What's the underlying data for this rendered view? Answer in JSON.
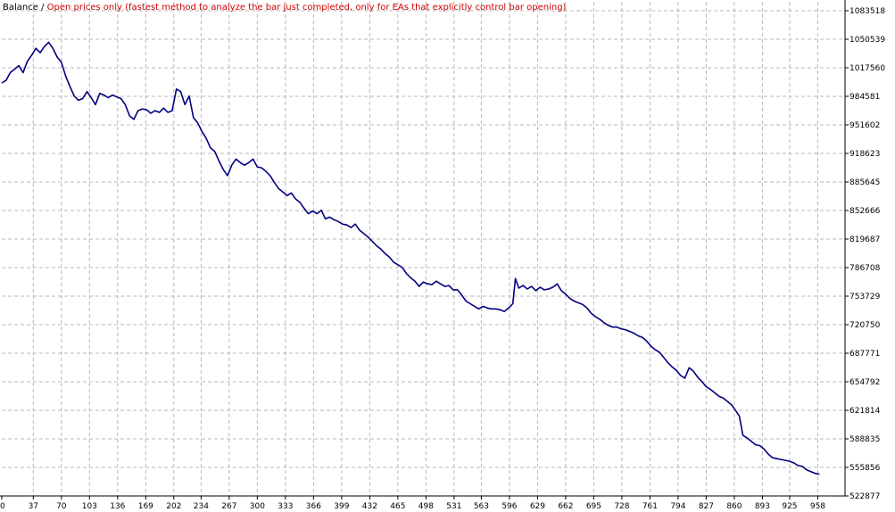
{
  "chart_data": {
    "type": "line",
    "legend": {
      "series_label": "Balance",
      "separator": " / ",
      "mode_label": "Open prices only (fastest method to analyze the bar just completed, only for EAs that explicitly control bar opening)"
    },
    "colors": {
      "line": "#000080",
      "grid": "#b8b8b8",
      "axis": "#000000",
      "mode_text": "#cc0000",
      "label_text": "#000000"
    },
    "x_ticks": [
      0,
      37,
      70,
      103,
      136,
      169,
      202,
      234,
      267,
      300,
      333,
      366,
      399,
      432,
      465,
      498,
      531,
      563,
      596,
      629,
      662,
      695,
      728,
      761,
      794,
      827,
      860,
      893,
      925,
      958
    ],
    "y_ticks": [
      522877,
      555856,
      588835,
      621814,
      654792,
      687771,
      720750,
      753729,
      786708,
      819687,
      852666,
      885645,
      918623,
      951602,
      984581,
      1017560,
      1050539,
      1083518
    ],
    "xlim": [
      0,
      990
    ],
    "ylim": [
      522877,
      1083518
    ],
    "grid": true,
    "series": [
      {
        "points": [
          [
            0,
            1000000
          ],
          [
            5,
            1003000
          ],
          [
            10,
            1012000
          ],
          [
            15,
            1016000
          ],
          [
            20,
            1020000
          ],
          [
            25,
            1012000
          ],
          [
            30,
            1025000
          ],
          [
            35,
            1032000
          ],
          [
            40,
            1040000
          ],
          [
            45,
            1035000
          ],
          [
            50,
            1042000
          ],
          [
            55,
            1047000
          ],
          [
            60,
            1040000
          ],
          [
            65,
            1030000
          ],
          [
            70,
            1024000
          ],
          [
            75,
            1008000
          ],
          [
            80,
            996000
          ],
          [
            85,
            985000
          ],
          [
            90,
            980000
          ],
          [
            95,
            982000
          ],
          [
            100,
            990000
          ],
          [
            105,
            983000
          ],
          [
            110,
            975000
          ],
          [
            115,
            988000
          ],
          [
            120,
            986000
          ],
          [
            125,
            983000
          ],
          [
            130,
            986000
          ],
          [
            135,
            984000
          ],
          [
            140,
            982000
          ],
          [
            145,
            975000
          ],
          [
            150,
            962000
          ],
          [
            155,
            958000
          ],
          [
            160,
            968000
          ],
          [
            165,
            970000
          ],
          [
            170,
            969000
          ],
          [
            175,
            965000
          ],
          [
            180,
            968000
          ],
          [
            185,
            966000
          ],
          [
            190,
            971000
          ],
          [
            195,
            966000
          ],
          [
            200,
            968000
          ],
          [
            205,
            993000
          ],
          [
            210,
            990000
          ],
          [
            215,
            975000
          ],
          [
            220,
            985000
          ],
          [
            225,
            960000
          ],
          [
            230,
            954000
          ],
          [
            235,
            944000
          ],
          [
            240,
            936000
          ],
          [
            245,
            925000
          ],
          [
            250,
            921000
          ],
          [
            255,
            910000
          ],
          [
            260,
            900000
          ],
          [
            265,
            893000
          ],
          [
            270,
            905000
          ],
          [
            275,
            912000
          ],
          [
            280,
            908000
          ],
          [
            285,
            905000
          ],
          [
            290,
            908000
          ],
          [
            295,
            912000
          ],
          [
            300,
            903000
          ],
          [
            305,
            902000
          ],
          [
            310,
            898000
          ],
          [
            315,
            893000
          ],
          [
            320,
            885000
          ],
          [
            325,
            878000
          ],
          [
            330,
            874000
          ],
          [
            335,
            870000
          ],
          [
            340,
            873000
          ],
          [
            345,
            866000
          ],
          [
            350,
            862000
          ],
          [
            355,
            855000
          ],
          [
            360,
            849000
          ],
          [
            365,
            852000
          ],
          [
            370,
            849000
          ],
          [
            375,
            853000
          ],
          [
            380,
            843000
          ],
          [
            385,
            845000
          ],
          [
            390,
            842000
          ],
          [
            395,
            840000
          ],
          [
            400,
            837000
          ],
          [
            405,
            836000
          ],
          [
            410,
            833000
          ],
          [
            415,
            837000
          ],
          [
            420,
            830000
          ],
          [
            425,
            826000
          ],
          [
            430,
            822000
          ],
          [
            435,
            817000
          ],
          [
            440,
            812000
          ],
          [
            445,
            808000
          ],
          [
            450,
            803000
          ],
          [
            455,
            799000
          ],
          [
            460,
            793000
          ],
          [
            465,
            790000
          ],
          [
            470,
            787000
          ],
          [
            475,
            780000
          ],
          [
            480,
            775000
          ],
          [
            485,
            771000
          ],
          [
            490,
            765000
          ],
          [
            495,
            770000
          ],
          [
            500,
            768000
          ],
          [
            505,
            767000
          ],
          [
            510,
            771000
          ],
          [
            515,
            768000
          ],
          [
            520,
            765000
          ],
          [
            525,
            766000
          ],
          [
            530,
            761000
          ],
          [
            535,
            761000
          ],
          [
            540,
            755000
          ],
          [
            545,
            748000
          ],
          [
            550,
            745000
          ],
          [
            555,
            742000
          ],
          [
            560,
            739000
          ],
          [
            565,
            742000
          ],
          [
            570,
            740000
          ],
          [
            575,
            739000
          ],
          [
            580,
            739000
          ],
          [
            585,
            738000
          ],
          [
            590,
            736000
          ],
          [
            595,
            740000
          ],
          [
            600,
            745000
          ],
          [
            603,
            774000
          ],
          [
            607,
            763000
          ],
          [
            612,
            766000
          ],
          [
            617,
            762000
          ],
          [
            622,
            765000
          ],
          [
            627,
            760000
          ],
          [
            632,
            764000
          ],
          [
            637,
            761000
          ],
          [
            642,
            762000
          ],
          [
            647,
            764000
          ],
          [
            652,
            768000
          ],
          [
            657,
            760000
          ],
          [
            662,
            756000
          ],
          [
            667,
            751000
          ],
          [
            672,
            748000
          ],
          [
            677,
            746000
          ],
          [
            682,
            744000
          ],
          [
            687,
            740000
          ],
          [
            692,
            734000
          ],
          [
            697,
            730000
          ],
          [
            702,
            727000
          ],
          [
            707,
            723000
          ],
          [
            712,
            720000
          ],
          [
            717,
            718000
          ],
          [
            722,
            718000
          ],
          [
            727,
            716000
          ],
          [
            732,
            715000
          ],
          [
            737,
            713000
          ],
          [
            742,
            711000
          ],
          [
            747,
            708000
          ],
          [
            752,
            706000
          ],
          [
            757,
            702000
          ],
          [
            762,
            696000
          ],
          [
            767,
            692000
          ],
          [
            772,
            689000
          ],
          [
            777,
            683000
          ],
          [
            782,
            677000
          ],
          [
            787,
            672000
          ],
          [
            792,
            668000
          ],
          [
            797,
            662000
          ],
          [
            802,
            659000
          ],
          [
            807,
            671000
          ],
          [
            812,
            667000
          ],
          [
            817,
            660000
          ],
          [
            822,
            655000
          ],
          [
            827,
            649000
          ],
          [
            832,
            646000
          ],
          [
            837,
            642000
          ],
          [
            842,
            638000
          ],
          [
            847,
            636000
          ],
          [
            852,
            632000
          ],
          [
            857,
            628000
          ],
          [
            862,
            621000
          ],
          [
            866,
            615000
          ],
          [
            870,
            593000
          ],
          [
            875,
            590000
          ],
          [
            880,
            586000
          ],
          [
            885,
            582000
          ],
          [
            890,
            581000
          ],
          [
            895,
            577000
          ],
          [
            900,
            571000
          ],
          [
            905,
            567000
          ],
          [
            910,
            566000
          ],
          [
            915,
            565000
          ],
          [
            920,
            564000
          ],
          [
            925,
            563000
          ],
          [
            930,
            561000
          ],
          [
            935,
            558000
          ],
          [
            940,
            557000
          ],
          [
            945,
            553000
          ],
          [
            950,
            551000
          ],
          [
            955,
            549000
          ],
          [
            960,
            548000
          ]
        ]
      }
    ]
  }
}
